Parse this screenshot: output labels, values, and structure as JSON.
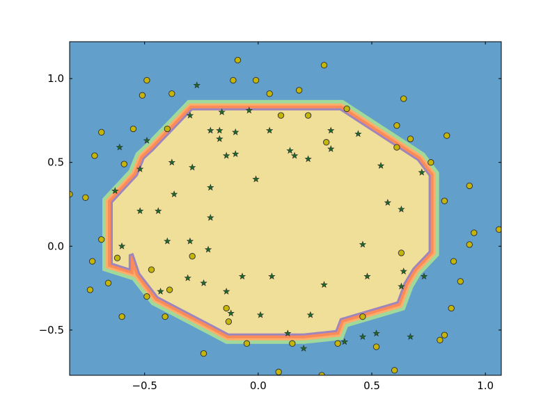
{
  "chart_data": {
    "type": "scatter",
    "title": "",
    "xlabel": "",
    "ylabel": "",
    "xlim": [
      -0.83,
      1.07
    ],
    "ylim": [
      -0.77,
      1.22
    ],
    "x_ticks": [
      -0.5,
      0.0,
      0.5,
      1.0
    ],
    "x_tick_labels": [
      "−0.5",
      "0.0",
      "0.5",
      "1.0"
    ],
    "y_ticks": [
      -0.5,
      0.0,
      0.5,
      1.0
    ],
    "y_tick_labels": [
      "−0.5",
      "0.0",
      "0.5",
      "1.0"
    ],
    "grid": false,
    "legend": "none",
    "colors": {
      "background_region": "#62a0cb",
      "decision_bands": [
        "#a1d99b",
        "#fdae6b",
        "#fb8c5a",
        "#9e86bd"
      ],
      "inner_region": "#f0df99",
      "circle_marker": "#c5b509",
      "star_marker": "#1c6b2a",
      "marker_edge": "#2b2b2b"
    },
    "decision_boundary": [
      [
        -0.29,
        0.81
      ],
      [
        0.36,
        0.81
      ],
      [
        0.7,
        0.51
      ],
      [
        0.75,
        0.42
      ],
      [
        0.75,
        -0.03
      ],
      [
        0.68,
        -0.13
      ],
      [
        0.64,
        -0.22
      ],
      [
        0.61,
        -0.33
      ],
      [
        0.36,
        -0.43
      ],
      [
        0.34,
        -0.5
      ],
      [
        0.2,
        -0.52
      ],
      [
        -0.13,
        -0.52
      ],
      [
        -0.2,
        -0.47
      ],
      [
        -0.44,
        -0.3
      ],
      [
        -0.52,
        -0.16
      ],
      [
        -0.55,
        -0.04
      ],
      [
        -0.57,
        -0.05
      ],
      [
        -0.57,
        -0.13
      ],
      [
        -0.64,
        -0.1
      ],
      [
        -0.64,
        0.26
      ],
      [
        -0.53,
        0.42
      ],
      [
        -0.5,
        0.52
      ],
      [
        -0.46,
        0.57
      ]
    ],
    "series": [
      {
        "marker": "circle",
        "points": [
          [
            0.29,
            1.08
          ],
          [
            -0.09,
            1.11
          ],
          [
            -0.49,
            0.99
          ],
          [
            -0.11,
            0.99
          ],
          [
            -0.01,
            0.99
          ],
          [
            -0.51,
            0.9
          ],
          [
            -0.38,
            0.91
          ],
          [
            0.05,
            0.91
          ],
          [
            0.18,
            0.93
          ],
          [
            0.64,
            0.88
          ],
          [
            0.39,
            0.82
          ],
          [
            0.1,
            0.78
          ],
          [
            0.22,
            0.78
          ],
          [
            -0.69,
            0.68
          ],
          [
            -0.55,
            0.7
          ],
          [
            -0.4,
            0.7
          ],
          [
            0.61,
            0.72
          ],
          [
            0.83,
            0.66
          ],
          [
            0.67,
            0.64
          ],
          [
            0.3,
            0.62
          ],
          [
            -0.72,
            0.54
          ],
          [
            -0.59,
            0.49
          ],
          [
            0.61,
            0.59
          ],
          [
            0.76,
            0.5
          ],
          [
            0.93,
            0.36
          ],
          [
            -0.83,
            0.31
          ],
          [
            -0.76,
            0.29
          ],
          [
            0.82,
            0.27
          ],
          [
            0.95,
            0.08
          ],
          [
            1.06,
            0.1
          ],
          [
            -0.69,
            0.04
          ],
          [
            0.93,
            0.01
          ],
          [
            0.63,
            -0.04
          ],
          [
            -0.62,
            -0.07
          ],
          [
            -0.29,
            -0.06
          ],
          [
            -0.73,
            -0.09
          ],
          [
            0.86,
            -0.09
          ],
          [
            -0.47,
            -0.14
          ],
          [
            -0.66,
            -0.22
          ],
          [
            0.89,
            -0.21
          ],
          [
            -0.74,
            -0.26
          ],
          [
            -0.39,
            -0.26
          ],
          [
            -0.49,
            -0.3
          ],
          [
            -0.14,
            -0.37
          ],
          [
            0.85,
            -0.37
          ],
          [
            -0.41,
            -0.42
          ],
          [
            -0.6,
            -0.42
          ],
          [
            0.46,
            -0.42
          ],
          [
            -0.13,
            -0.45
          ],
          [
            0.82,
            -0.53
          ],
          [
            0.8,
            -0.56
          ],
          [
            -0.05,
            -0.58
          ],
          [
            0.15,
            -0.58
          ],
          [
            0.35,
            -0.58
          ],
          [
            0.52,
            -0.6
          ],
          [
            -0.24,
            -0.64
          ],
          [
            0.6,
            -0.74
          ],
          [
            0.09,
            -0.75
          ],
          [
            0.28,
            -0.77
          ]
        ]
      },
      {
        "marker": "star",
        "points": [
          [
            -0.27,
            0.96
          ],
          [
            -0.16,
            0.8
          ],
          [
            -0.04,
            0.81
          ],
          [
            -0.3,
            0.78
          ],
          [
            -0.21,
            0.69
          ],
          [
            -0.17,
            0.69
          ],
          [
            -0.1,
            0.68
          ],
          [
            0.05,
            0.69
          ],
          [
            0.32,
            0.69
          ],
          [
            0.44,
            0.67
          ],
          [
            -0.49,
            0.63
          ],
          [
            -0.17,
            0.64
          ],
          [
            -0.61,
            0.59
          ],
          [
            0.14,
            0.57
          ],
          [
            0.32,
            0.58
          ],
          [
            -0.14,
            0.54
          ],
          [
            -0.1,
            0.55
          ],
          [
            0.16,
            0.54
          ],
          [
            0.22,
            0.52
          ],
          [
            -0.38,
            0.5
          ],
          [
            0.54,
            0.48
          ],
          [
            -0.29,
            0.47
          ],
          [
            -0.52,
            0.46
          ],
          [
            0.72,
            0.44
          ],
          [
            -0.01,
            0.4
          ],
          [
            -0.21,
            0.35
          ],
          [
            -0.63,
            0.33
          ],
          [
            -0.37,
            0.31
          ],
          [
            0.57,
            0.26
          ],
          [
            -0.52,
            0.21
          ],
          [
            -0.44,
            0.21
          ],
          [
            0.63,
            0.22
          ],
          [
            -0.21,
            0.17
          ],
          [
            -0.4,
            0.03
          ],
          [
            -0.3,
            0.03
          ],
          [
            0.46,
            0.01
          ],
          [
            -0.6,
            0.0
          ],
          [
            -0.22,
            -0.02
          ],
          [
            0.64,
            -0.15
          ],
          [
            -0.31,
            -0.19
          ],
          [
            -0.07,
            -0.18
          ],
          [
            0.06,
            -0.18
          ],
          [
            0.48,
            -0.18
          ],
          [
            0.73,
            -0.18
          ],
          [
            -0.24,
            -0.22
          ],
          [
            0.29,
            -0.23
          ],
          [
            0.63,
            -0.24
          ],
          [
            -0.43,
            -0.27
          ],
          [
            -0.14,
            -0.27
          ],
          [
            -0.12,
            -0.4
          ],
          [
            0.01,
            -0.41
          ],
          [
            0.23,
            -0.41
          ],
          [
            0.13,
            -0.52
          ],
          [
            0.52,
            -0.52
          ],
          [
            0.46,
            -0.54
          ],
          [
            0.67,
            -0.54
          ],
          [
            0.38,
            -0.57
          ],
          [
            0.2,
            -0.61
          ]
        ]
      }
    ]
  }
}
